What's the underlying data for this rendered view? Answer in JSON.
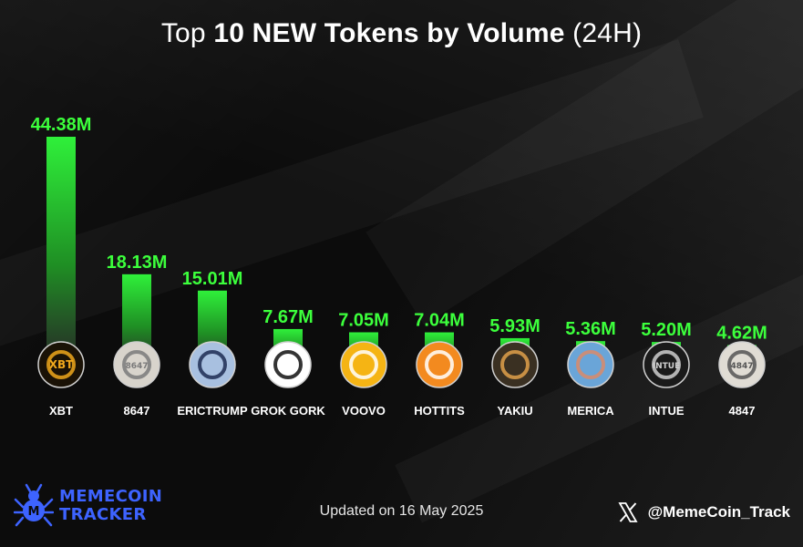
{
  "header": {
    "title_prefix": "Top ",
    "title_bold": "10 NEW Tokens by Volume",
    "title_suffix": " (24H)"
  },
  "chart_data": {
    "type": "bar",
    "categories": [
      "XBT",
      "8647",
      "ERICTRUMP",
      "GROK GORK",
      "VOOVO",
      "HOTTITS",
      "YAKIU",
      "MERICA",
      "INTUE",
      "4847"
    ],
    "values": [
      44.38,
      18.13,
      15.01,
      7.67,
      7.05,
      7.04,
      5.93,
      5.36,
      5.2,
      4.62
    ],
    "data_labels": [
      "44.38M",
      "18.13M",
      "15.01M",
      "7.67M",
      "7.05M",
      "7.04M",
      "5.93M",
      "5.36M",
      "5.20M",
      "4.62M"
    ],
    "unit": "M",
    "title": "Top 10 NEW Tokens by Volume (24H)",
    "xlabel": "",
    "ylabel": "",
    "ylim": [
      0,
      44.38
    ],
    "grid": false,
    "legend": "none",
    "bar_color": "#33ff33"
  },
  "tokens": [
    {
      "icon": "xbt-logo-icon",
      "icon_text": "XBT",
      "colors": [
        "#1a1206",
        "#f0a81c"
      ]
    },
    {
      "icon": "8647-logo-icon",
      "icon_text": "8647",
      "colors": [
        "#d8d4cc",
        "#7a7a7a"
      ]
    },
    {
      "icon": "erictrump-avatar-icon",
      "icon_text": "",
      "colors": [
        "#a8c0e0",
        "#1d2c52"
      ]
    },
    {
      "icon": "yin-yang-icon",
      "icon_text": "",
      "colors": [
        "#ffffff",
        "#111111"
      ]
    },
    {
      "icon": "voovo-mascot-icon",
      "icon_text": "",
      "colors": [
        "#f5b414",
        "#ffffff"
      ]
    },
    {
      "icon": "bitcoin-icon",
      "icon_text": "",
      "colors": [
        "#f38a1f",
        "#ffffff"
      ]
    },
    {
      "icon": "yakiu-mascot-icon",
      "icon_text": "",
      "colors": [
        "#3a3022",
        "#e0a04a"
      ]
    },
    {
      "icon": "merica-avatar-icon",
      "icon_text": "",
      "colors": [
        "#6aa5d8",
        "#d98a6a"
      ]
    },
    {
      "icon": "intue-logo-icon",
      "icon_text": "INTUE",
      "colors": [
        "#1a1a1a",
        "#cfcfcf"
      ]
    },
    {
      "icon": "4847-logo-icon",
      "icon_text": "4847",
      "colors": [
        "#e0dcd4",
        "#555555"
      ]
    }
  ],
  "footer": {
    "updated": "Updated on 16 May 2025",
    "brand_line1": "MEMECOIN",
    "brand_line2": "TRACKER",
    "brand_color": "#3d63ff",
    "handle": "@MemeCoin_Track"
  }
}
